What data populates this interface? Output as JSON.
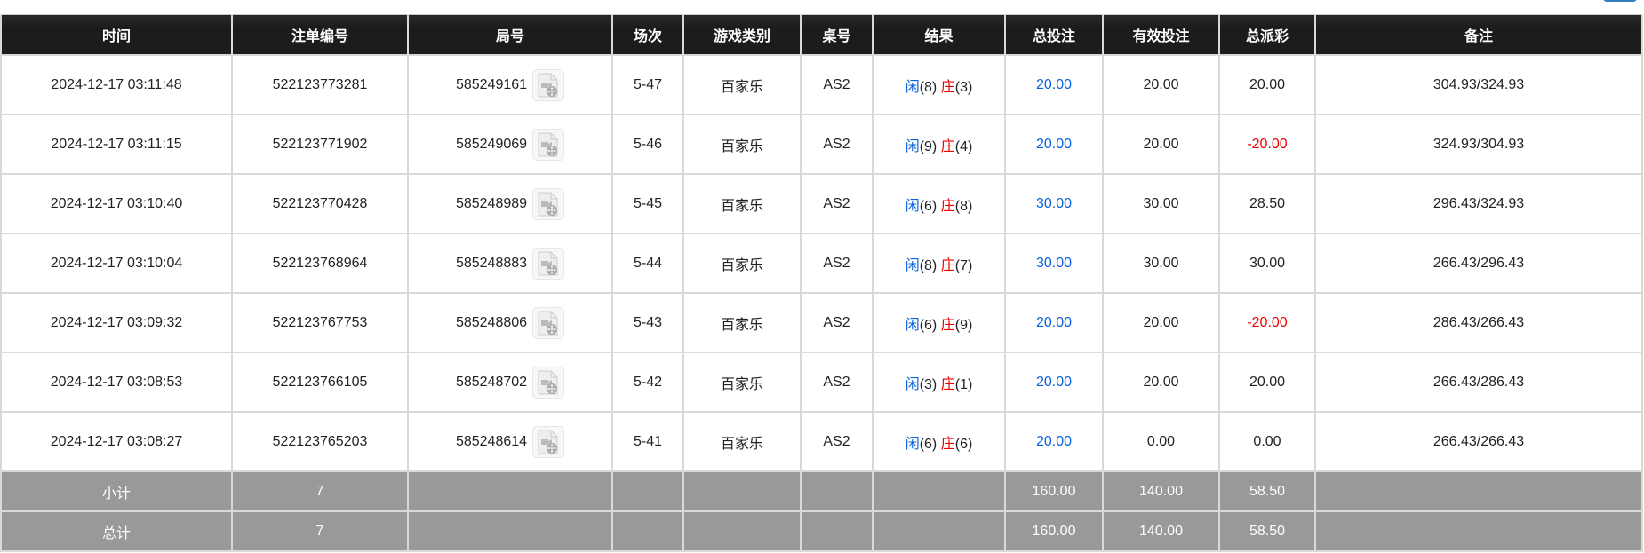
{
  "headers": [
    "时间",
    "注单编号",
    "局号",
    "场次",
    "游戏类别",
    "桌号",
    "结果",
    "总投注",
    "有效投注",
    "总派彩",
    "备注"
  ],
  "result_labels": {
    "player": "闲",
    "banker": "庄"
  },
  "colors": {
    "header_bg": "#1c1c1c",
    "summary_bg": "#999999",
    "bet_blue": "#0a62e0",
    "negative_red": "#ee0000",
    "player_blue": "#0a62e0",
    "banker_red": "#ee0000"
  },
  "rows": [
    {
      "time": "2024-12-17 03:11:48",
      "bet_no": "522123773281",
      "round_no": "585249161",
      "session": "5-47",
      "game": "百家乐",
      "table": "AS2",
      "player": "(8)",
      "banker": "(3)",
      "total_bet": "20.00",
      "valid_bet": "20.00",
      "payout": "20.00",
      "payout_negative": false,
      "note": "304.93/324.93"
    },
    {
      "time": "2024-12-17 03:11:15",
      "bet_no": "522123771902",
      "round_no": "585249069",
      "session": "5-46",
      "game": "百家乐",
      "table": "AS2",
      "player": "(9)",
      "banker": "(4)",
      "total_bet": "20.00",
      "valid_bet": "20.00",
      "payout": "-20.00",
      "payout_negative": true,
      "note": "324.93/304.93"
    },
    {
      "time": "2024-12-17 03:10:40",
      "bet_no": "522123770428",
      "round_no": "585248989",
      "session": "5-45",
      "game": "百家乐",
      "table": "AS2",
      "player": "(6)",
      "banker": "(8)",
      "total_bet": "30.00",
      "valid_bet": "30.00",
      "payout": "28.50",
      "payout_negative": false,
      "note": "296.43/324.93"
    },
    {
      "time": "2024-12-17 03:10:04",
      "bet_no": "522123768964",
      "round_no": "585248883",
      "session": "5-44",
      "game": "百家乐",
      "table": "AS2",
      "player": "(8)",
      "banker": "(7)",
      "total_bet": "30.00",
      "valid_bet": "30.00",
      "payout": "30.00",
      "payout_negative": false,
      "note": "266.43/296.43"
    },
    {
      "time": "2024-12-17 03:09:32",
      "bet_no": "522123767753",
      "round_no": "585248806",
      "session": "5-43",
      "game": "百家乐",
      "table": "AS2",
      "player": "(6)",
      "banker": "(9)",
      "total_bet": "20.00",
      "valid_bet": "20.00",
      "payout": "-20.00",
      "payout_negative": true,
      "note": "286.43/266.43"
    },
    {
      "time": "2024-12-17 03:08:53",
      "bet_no": "522123766105",
      "round_no": "585248702",
      "session": "5-42",
      "game": "百家乐",
      "table": "AS2",
      "player": "(3)",
      "banker": "(1)",
      "total_bet": "20.00",
      "valid_bet": "20.00",
      "payout": "20.00",
      "payout_negative": false,
      "note": "266.43/286.43"
    },
    {
      "time": "2024-12-17 03:08:27",
      "bet_no": "522123765203",
      "round_no": "585248614",
      "session": "5-41",
      "game": "百家乐",
      "table": "AS2",
      "player": "(6)",
      "banker": "(6)",
      "total_bet": "20.00",
      "valid_bet": "0.00",
      "payout": "0.00",
      "payout_negative": false,
      "note": "266.43/266.43"
    }
  ],
  "subtotal": {
    "label": "小计",
    "count": "7",
    "total_bet": "160.00",
    "valid_bet": "140.00",
    "payout": "58.50"
  },
  "total": {
    "label": "总计",
    "count": "7",
    "total_bet": "160.00",
    "valid_bet": "140.00",
    "payout": "58.50"
  },
  "icons": {
    "replay": "video-file-icon"
  }
}
